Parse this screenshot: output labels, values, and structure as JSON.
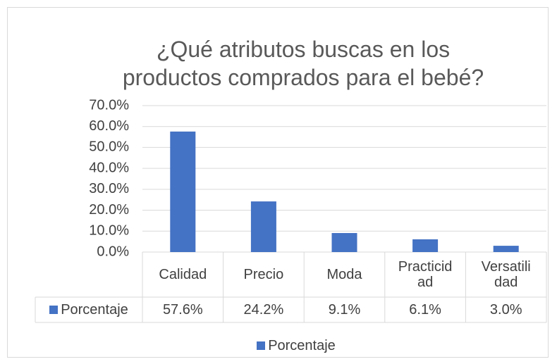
{
  "chart_data": {
    "type": "bar",
    "title": "¿Qué atributos buscas en los productos comprados para el bebé?",
    "categories": [
      "Calidad",
      "Precio",
      "Moda",
      "Practicidad",
      "Versatilidad"
    ],
    "series": [
      {
        "name": "Porcentaje",
        "color": "#4472c4",
        "values": [
          57.6,
          24.2,
          9.1,
          6.1,
          3.0
        ],
        "value_labels": [
          "57.6%",
          "24.2%",
          "9.1%",
          "6.1%",
          "3.0%"
        ]
      }
    ],
    "ylim": [
      0,
      70
    ],
    "yticks": [
      {
        "value": 0,
        "label": "0.0%"
      },
      {
        "value": 10,
        "label": "10.0%"
      },
      {
        "value": 20,
        "label": "20.0%"
      },
      {
        "value": 30,
        "label": "30.0%"
      },
      {
        "value": 40,
        "label": "40.0%"
      },
      {
        "value": 50,
        "label": "50.0%"
      },
      {
        "value": 60,
        "label": "60.0%"
      },
      {
        "value": 70,
        "label": "70.0%"
      }
    ],
    "grid": true,
    "legend": "bottom",
    "data_table": true
  }
}
